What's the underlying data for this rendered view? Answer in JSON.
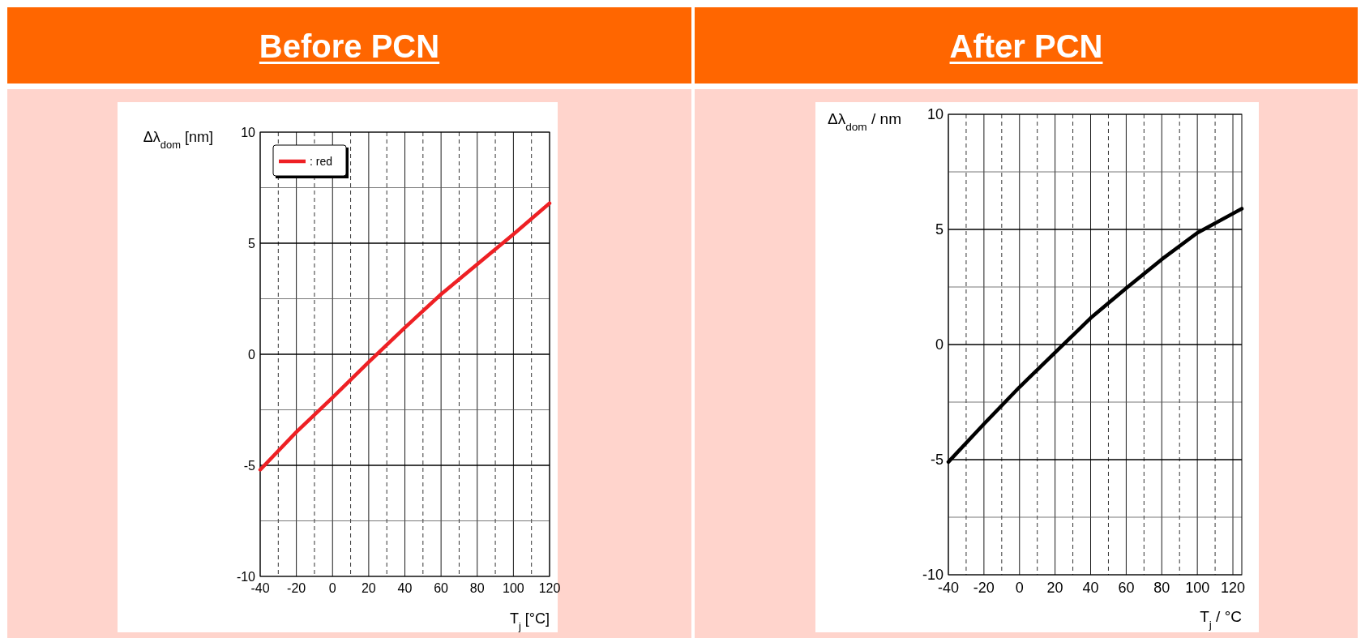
{
  "chart_data": [
    {
      "type": "line",
      "title": "Before PCN",
      "ylabel": "Δλ$_{dom}$ [nm]",
      "xlabel": "T$_{j}$ [°C]",
      "x": [
        -40,
        -20,
        0,
        20,
        40,
        60,
        80,
        100,
        120
      ],
      "series": [
        {
          "name": ": red",
          "color": "#ee2024",
          "values": [
            -5.2,
            -3.5,
            -1.95,
            -0.35,
            1.2,
            2.7,
            4.05,
            5.4,
            6.8
          ]
        }
      ],
      "xlim": [
        -40,
        120
      ],
      "ylim": [
        -10,
        10
      ],
      "xticks": [
        -40,
        {
          "value": -30,
          "label": null
        },
        -20,
        {
          "value": -10,
          "label": null
        },
        0,
        {
          "value": 10,
          "label": null
        },
        20,
        {
          "value": 30,
          "label": null
        },
        40,
        {
          "value": 50,
          "label": null
        },
        60,
        {
          "value": 70,
          "label": null
        },
        80,
        {
          "value": 90,
          "label": null
        },
        100,
        {
          "value": 110,
          "label": null
        },
        120
      ],
      "yticks": [
        -10,
        {
          "value": -7.5,
          "label": null
        },
        -5,
        {
          "value": -2.5,
          "label": null
        },
        0,
        {
          "value": 2.5,
          "label": null
        },
        5,
        {
          "value": 7.5,
          "label": null
        },
        10
      ],
      "grid": true,
      "legend": "top left",
      "marker": "none",
      "line_style": "solid"
    },
    {
      "type": "line",
      "title": "After PCN",
      "ylabel": "Δλ$_{dom}$ / nm",
      "xlabel": "T$_{j}$ / °C",
      "x": [
        -40,
        -20,
        0,
        20,
        40,
        60,
        80,
        100,
        125
      ],
      "series": [
        {
          "color": "#000000",
          "values": [
            -5.1,
            -3.45,
            -1.85,
            -0.35,
            1.15,
            2.45,
            3.7,
            4.85,
            5.9
          ]
        }
      ],
      "xlim": [
        -40,
        125
      ],
      "ylim": [
        -10,
        10
      ],
      "xticks": [
        -40,
        {
          "value": -30,
          "label": null
        },
        -20,
        {
          "value": -10,
          "label": null
        },
        0,
        {
          "value": 10,
          "label": null
        },
        20,
        {
          "value": 30,
          "label": null
        },
        40,
        {
          "value": 50,
          "label": null
        },
        60,
        {
          "value": 70,
          "label": null
        },
        80,
        {
          "value": 90,
          "label": null
        },
        100,
        {
          "value": 110,
          "label": null
        },
        120
      ],
      "yticks": [
        -10,
        {
          "value": -7.5,
          "label": null
        },
        -5,
        {
          "value": -2.5,
          "label": null
        },
        0,
        {
          "value": 2.5,
          "label": null
        },
        5,
        {
          "value": 7.5,
          "label": null
        },
        10
      ],
      "grid": true,
      "marker": "none",
      "line_style": "solid"
    }
  ]
}
